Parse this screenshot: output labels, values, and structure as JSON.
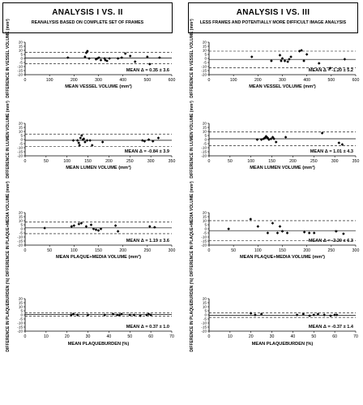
{
  "header": {
    "left": {
      "title": "ANALYSIS  I VS. II",
      "subtitle": "REANALYSIS BASED ON COMPLETE SET OF FRAMES"
    },
    "right": {
      "title": "ANALYSIS  I VS. III",
      "subtitle": "LESS FRAMES AND POTENTIALLY MORE DIFFICULT IMAGE ANALYSIS"
    }
  },
  "chart_data": [
    {
      "type": "scatter",
      "xlabel": "MEAN VESSEL VOLUME (mm³)",
      "ylabel": "DIFFERENCE IN VESSEL VOLUME (mm³)",
      "xlim": [
        0,
        600
      ],
      "ylim": [
        -20,
        20
      ],
      "xticks": [
        0,
        100,
        200,
        300,
        400,
        500,
        600
      ],
      "yticks": [
        -20,
        -15,
        -10,
        -5,
        0,
        5,
        10,
        15,
        20
      ],
      "mean_line": 0.35,
      "limit_lines": [
        7.4,
        -6.7
      ],
      "annotation": "MEAN Δ = 0.35 ± 3.6",
      "points": [
        [
          175,
          1
        ],
        [
          245,
          2
        ],
        [
          250,
          7
        ],
        [
          255,
          9
        ],
        [
          262,
          0
        ],
        [
          290,
          -1
        ],
        [
          296,
          0
        ],
        [
          302,
          1
        ],
        [
          310,
          -2
        ],
        [
          325,
          0
        ],
        [
          328,
          -2
        ],
        [
          335,
          -3
        ],
        [
          345,
          0
        ],
        [
          380,
          0
        ],
        [
          395,
          1
        ],
        [
          410,
          6
        ],
        [
          430,
          3
        ],
        [
          450,
          -4
        ],
        [
          500,
          2
        ],
        [
          510,
          -7
        ],
        [
          550,
          1
        ]
      ]
    },
    {
      "type": "scatter",
      "xlabel": "MEAN VESSEL VOLUME (mm³)",
      "ylabel": "DIFFERENCE IN VESSEL VOLUME (mm³)",
      "xlim": [
        0,
        600
      ],
      "ylim": [
        -20,
        20
      ],
      "xticks": [
        0,
        100,
        200,
        300,
        400,
        500,
        600
      ],
      "yticks": [
        -20,
        -15,
        -10,
        -5,
        0,
        5,
        10,
        15,
        20
      ],
      "mean_line": -1.2,
      "limit_lines": [
        9.0,
        -11.4
      ],
      "annotation": "MEAN Δ = -1.20 ± 5.2",
      "points": [
        [
          175,
          2
        ],
        [
          255,
          -3
        ],
        [
          290,
          4
        ],
        [
          295,
          -3
        ],
        [
          300,
          0
        ],
        [
          310,
          -3
        ],
        [
          322,
          -4
        ],
        [
          328,
          -1
        ],
        [
          335,
          2
        ],
        [
          370,
          9
        ],
        [
          378,
          10
        ],
        [
          388,
          -3
        ],
        [
          400,
          5
        ],
        [
          450,
          -6
        ],
        [
          495,
          -12
        ],
        [
          555,
          -1
        ]
      ]
    },
    {
      "type": "scatter",
      "xlabel": "MEAN LUMEN VOLUME (mm³)",
      "ylabel": "DIFFERENCE IN LUMEN VOLUME (mm³)",
      "xlim": [
        0,
        350
      ],
      "ylim": [
        -20,
        20
      ],
      "xticks": [
        0,
        50,
        100,
        150,
        200,
        250,
        300,
        350
      ],
      "yticks": [
        -20,
        -15,
        -10,
        -5,
        0,
        5,
        10,
        15,
        20
      ],
      "mean_line": -0.84,
      "limit_lines": [
        6.8,
        -8.5
      ],
      "annotation": "MEAN Δ = -0.84 ± 3.9",
      "points": [
        [
          115,
          -1
        ],
        [
          125,
          -1
        ],
        [
          128,
          -4
        ],
        [
          130,
          -7
        ],
        [
          132,
          2
        ],
        [
          135,
          5
        ],
        [
          138,
          0
        ],
        [
          140,
          1
        ],
        [
          143,
          -3
        ],
        [
          148,
          -1
        ],
        [
          155,
          -1
        ],
        [
          160,
          -7
        ],
        [
          185,
          -3
        ],
        [
          280,
          -1
        ],
        [
          285,
          -2
        ],
        [
          295,
          0
        ],
        [
          305,
          -2
        ],
        [
          318,
          2
        ]
      ]
    },
    {
      "type": "scatter",
      "xlabel": "MEAN LUMEN VOLUME (mm³)",
      "ylabel": "DIFFERENCE IN LUMEN VOLUME (mm³)",
      "xlim": [
        0,
        350
      ],
      "ylim": [
        -20,
        20
      ],
      "xticks": [
        0,
        50,
        100,
        150,
        200,
        250,
        300,
        350
      ],
      "yticks": [
        -20,
        -15,
        -10,
        -5,
        0,
        5,
        10,
        15,
        20
      ],
      "mean_line": 1.01,
      "limit_lines": [
        9.4,
        -7.4
      ],
      "annotation": "MEAN Δ = 1.01 ± 4.3",
      "points": [
        [
          115,
          0
        ],
        [
          125,
          0
        ],
        [
          130,
          1
        ],
        [
          133,
          2
        ],
        [
          136,
          4
        ],
        [
          138,
          3
        ],
        [
          140,
          2
        ],
        [
          143,
          0
        ],
        [
          148,
          1
        ],
        [
          152,
          3
        ],
        [
          155,
          1
        ],
        [
          160,
          -3
        ],
        [
          183,
          3
        ],
        [
          270,
          8
        ],
        [
          310,
          -4
        ],
        [
          318,
          -6
        ]
      ]
    },
    {
      "type": "scatter",
      "xlabel": "MEAN PLAQUE+MEDIA VOLUME (mm³)",
      "ylabel": "DIFFERENCE IN PLAQUE+MEDIA VOLUME (mm³)",
      "xlim": [
        0,
        300
      ],
      "ylim": [
        -20,
        20
      ],
      "xticks": [
        0,
        50,
        100,
        150,
        200,
        250,
        300
      ],
      "yticks": [
        -20,
        -15,
        -10,
        -5,
        0,
        5,
        10,
        15,
        20
      ],
      "mean_line": 1.19,
      "limit_lines": [
        8.3,
        -5.9
      ],
      "annotation": "MEAN Δ = 1.19 ± 3.6",
      "points": [
        [
          40,
          1
        ],
        [
          95,
          3
        ],
        [
          100,
          4
        ],
        [
          110,
          6
        ],
        [
          115,
          7
        ],
        [
          125,
          3
        ],
        [
          135,
          5
        ],
        [
          140,
          0
        ],
        [
          145,
          -1
        ],
        [
          150,
          -2
        ],
        [
          155,
          0
        ],
        [
          185,
          4
        ],
        [
          190,
          -3
        ],
        [
          255,
          3
        ],
        [
          265,
          2
        ]
      ]
    },
    {
      "type": "scatter",
      "xlabel": "MEAN PLAQUE+MEDIA VOLUME (mm³)",
      "ylabel": "DIFFERENCE IN PLAQUE+MEDIA VOLUME (mm³)",
      "xlim": [
        0,
        300
      ],
      "ylim": [
        -20,
        20
      ],
      "xticks": [
        0,
        50,
        100,
        150,
        200,
        250,
        300
      ],
      "yticks": [
        -20,
        -15,
        -10,
        -5,
        0,
        5,
        10,
        15,
        20
      ],
      "mean_line": -2.2,
      "limit_lines": [
        10.1,
        -14.5
      ],
      "annotation": "MEAN Δ = -2.20 ± 6.3",
      "points": [
        [
          40,
          0
        ],
        [
          85,
          12
        ],
        [
          100,
          3
        ],
        [
          120,
          -5
        ],
        [
          130,
          7
        ],
        [
          140,
          -5
        ],
        [
          145,
          3
        ],
        [
          150,
          -3
        ],
        [
          160,
          -5
        ],
        [
          195,
          -4
        ],
        [
          205,
          -5
        ],
        [
          215,
          -5
        ],
        [
          260,
          -3
        ],
        [
          275,
          -6
        ]
      ]
    },
    {
      "type": "scatter",
      "xlabel": "MEAN PLAQUEBURDEN (%)",
      "ylabel": "DIFFERENCE IN PLAQUEBURDEN (%)",
      "xlim": [
        0,
        70
      ],
      "ylim": [
        -20,
        20
      ],
      "xticks": [
        0,
        10,
        20,
        30,
        40,
        50,
        60,
        70
      ],
      "yticks": [
        -20,
        -15,
        -10,
        -5,
        0,
        5,
        10,
        15,
        20
      ],
      "mean_line": 0.37,
      "limit_lines": [
        2.3,
        -1.6
      ],
      "annotation": "MEAN Δ = 0.37 ± 1.0",
      "points": [
        [
          22,
          0
        ],
        [
          23,
          1
        ],
        [
          25,
          0
        ],
        [
          30,
          0
        ],
        [
          38,
          0
        ],
        [
          42,
          1
        ],
        [
          44,
          0
        ],
        [
          45,
          0
        ],
        [
          46,
          1
        ],
        [
          50,
          0
        ],
        [
          52,
          0
        ],
        [
          55,
          -1
        ],
        [
          58,
          0
        ],
        [
          59,
          1
        ],
        [
          60,
          0
        ]
      ]
    },
    {
      "type": "scatter",
      "xlabel": "MEAN PLAQUEBURDEN (%)",
      "ylabel": "DIFFERENCE IN PLAQUEBURDEN (%)",
      "xlim": [
        0,
        70
      ],
      "ylim": [
        -20,
        20
      ],
      "xticks": [
        0,
        10,
        20,
        30,
        40,
        50,
        60,
        70
      ],
      "yticks": [
        -20,
        -15,
        -10,
        -5,
        0,
        5,
        10,
        15,
        20
      ],
      "mean_line": -0.37,
      "limit_lines": [
        2.4,
        -3.1
      ],
      "annotation": "MEAN Δ = -0.37 ± 1.4",
      "points": [
        [
          20,
          2
        ],
        [
          22,
          0
        ],
        [
          25,
          1
        ],
        [
          42,
          0
        ],
        [
          45,
          1
        ],
        [
          48,
          -1
        ],
        [
          50,
          0
        ],
        [
          52,
          1
        ],
        [
          55,
          0
        ],
        [
          58,
          -1
        ],
        [
          60,
          0
        ],
        [
          61,
          0
        ]
      ]
    }
  ]
}
